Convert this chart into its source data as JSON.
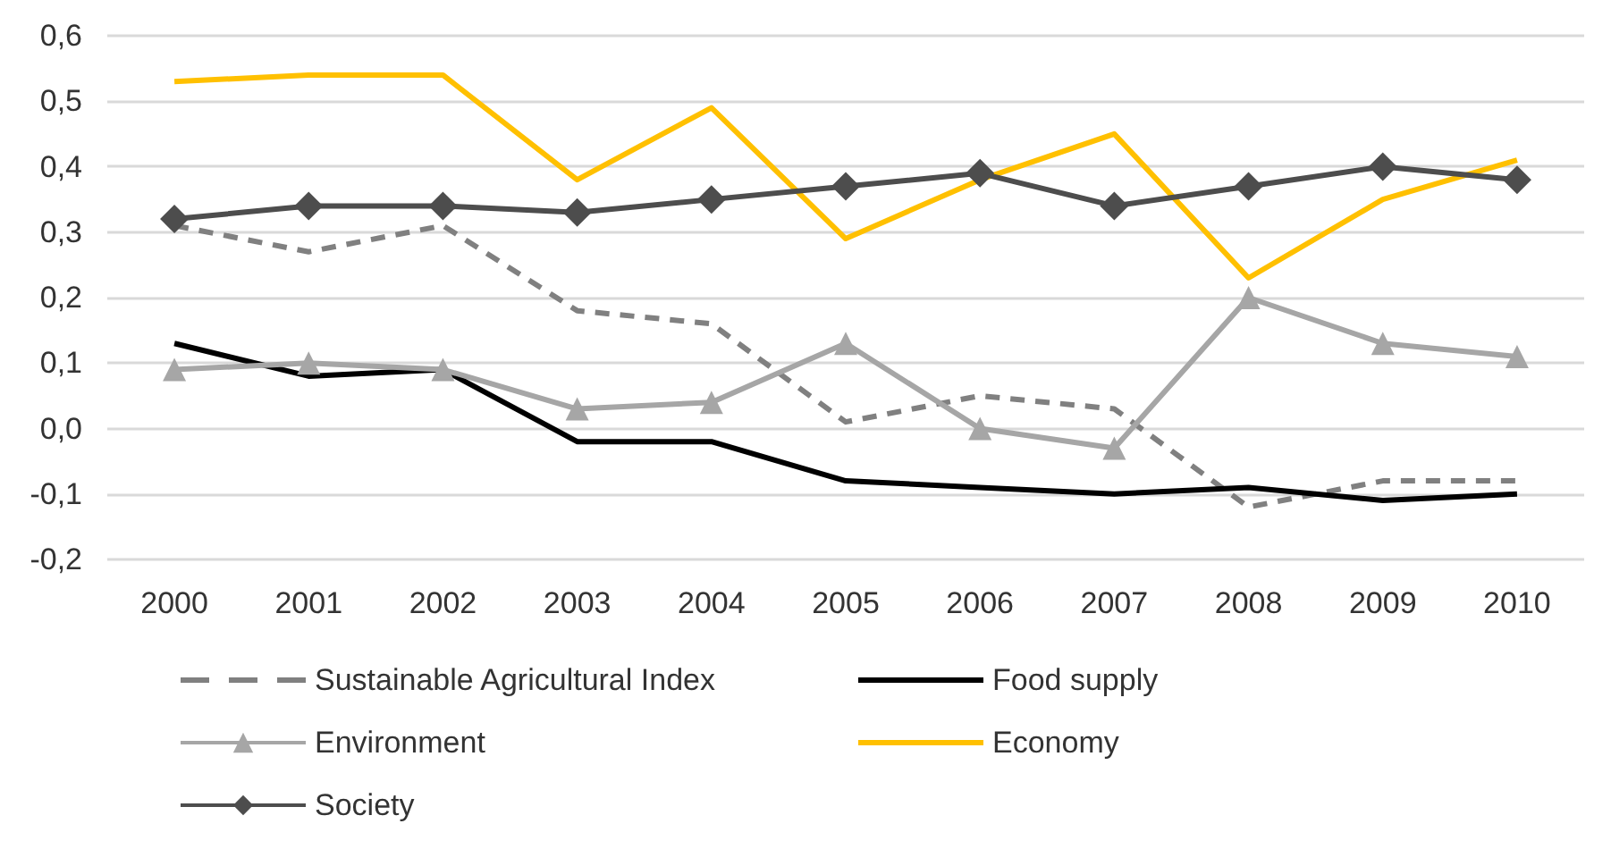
{
  "chart_data": {
    "type": "line",
    "categories": [
      "2000",
      "2001",
      "2002",
      "2003",
      "2004",
      "2005",
      "2006",
      "2007",
      "2008",
      "2009",
      "2010"
    ],
    "series": [
      {
        "name": "Sustainable Agricultural Index",
        "color": "#808080",
        "line_style": "dashed",
        "marker": "none",
        "values": [
          0.31,
          0.27,
          0.31,
          0.18,
          0.16,
          0.01,
          0.05,
          0.03,
          -0.12,
          -0.08,
          -0.08
        ]
      },
      {
        "name": "Food supply",
        "color": "#000000",
        "line_style": "solid",
        "marker": "none",
        "values": [
          0.13,
          0.08,
          0.09,
          -0.02,
          -0.02,
          -0.08,
          -0.09,
          -0.1,
          -0.09,
          -0.11,
          -0.1
        ]
      },
      {
        "name": "Environment",
        "color": "#a6a6a6",
        "line_style": "solid",
        "marker": "triangle",
        "values": [
          0.09,
          0.1,
          0.09,
          0.03,
          0.04,
          0.13,
          0.0,
          -0.03,
          0.2,
          0.13,
          0.11
        ]
      },
      {
        "name": "Economy",
        "color": "#ffc000",
        "line_style": "solid",
        "marker": "none",
        "values": [
          0.53,
          0.54,
          0.54,
          0.38,
          0.49,
          0.29,
          0.38,
          0.45,
          0.23,
          0.35,
          0.41
        ]
      },
      {
        "name": "Society",
        "color": "#4d4d4d",
        "line_style": "solid",
        "marker": "diamond",
        "values": [
          0.32,
          0.34,
          0.34,
          0.33,
          0.35,
          0.37,
          0.39,
          0.34,
          0.37,
          0.4,
          0.38
        ]
      }
    ],
    "ylim": [
      -0.2,
      0.6
    ],
    "yticks": [
      {
        "value": -0.2,
        "label": "-0,2"
      },
      {
        "value": -0.1,
        "label": "-0,1"
      },
      {
        "value": 0,
        "label": "0,0"
      },
      {
        "value": 0.1,
        "label": "0,1"
      },
      {
        "value": 0.2,
        "label": "0,2"
      },
      {
        "value": 0.3,
        "label": "0,3"
      },
      {
        "value": 0.4,
        "label": "0,4"
      },
      {
        "value": 0.5,
        "label": "0,5"
      },
      {
        "value": 0.6,
        "label": "0,6"
      }
    ],
    "grid": "y",
    "legend": "bottom"
  }
}
